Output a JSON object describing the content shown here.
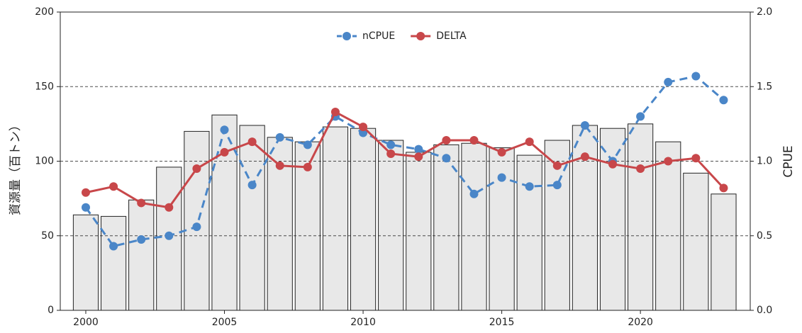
{
  "chart_data": {
    "type": "bar",
    "x": [
      2000,
      2001,
      2002,
      2003,
      2004,
      2005,
      2006,
      2007,
      2008,
      2009,
      2010,
      2011,
      2012,
      2013,
      2014,
      2015,
      2016,
      2017,
      2018,
      2019,
      2020,
      2021,
      2022,
      2023
    ],
    "values": [
      64,
      63,
      74,
      96,
      120,
      131,
      124,
      116,
      113,
      123,
      122,
      114,
      106,
      111,
      112,
      109,
      104,
      114,
      124,
      122,
      125,
      113,
      92,
      78
    ],
    "color": "#e8e8e8",
    "series": [
      {
        "name": "nCPUE",
        "color": "#4a86c8",
        "axis": "y2",
        "dashed": true,
        "values": [
          0.69,
          0.43,
          0.475,
          0.5,
          0.56,
          1.21,
          0.84,
          1.16,
          1.11,
          1.3,
          1.19,
          1.11,
          1.08,
          1.02,
          0.78,
          0.89,
          0.83,
          0.84,
          1.24,
          1.0,
          1.3,
          1.53,
          1.57,
          1.41
        ]
      },
      {
        "name": "DELTA",
        "color": "#c8474a",
        "axis": "y2",
        "dashed": false,
        "values": [
          0.79,
          0.83,
          0.72,
          0.69,
          0.95,
          1.06,
          1.13,
          0.97,
          0.96,
          1.33,
          1.23,
          1.05,
          1.03,
          1.14,
          1.14,
          1.06,
          1.13,
          0.97,
          1.03,
          0.98,
          0.95,
          1.0,
          1.02,
          0.82
        ]
      }
    ],
    "y_label": "資源量（百トン）",
    "y2_label": "CPUE",
    "xlim": [
      1999.08,
      2023.96
    ],
    "xticks": [
      2000,
      2005,
      2010,
      2015,
      2020
    ],
    "ylim": [
      0,
      200
    ],
    "yticks": [
      0,
      50,
      100,
      150,
      200
    ],
    "y2lim": [
      0,
      2
    ],
    "y2ticks": [
      {
        "value": 0,
        "label": "0.0"
      },
      0.5,
      {
        "value": 1,
        "label": "1.0"
      },
      1.5,
      {
        "value": 2,
        "label": "2.0"
      }
    ],
    "grid": true,
    "legend": "top"
  }
}
